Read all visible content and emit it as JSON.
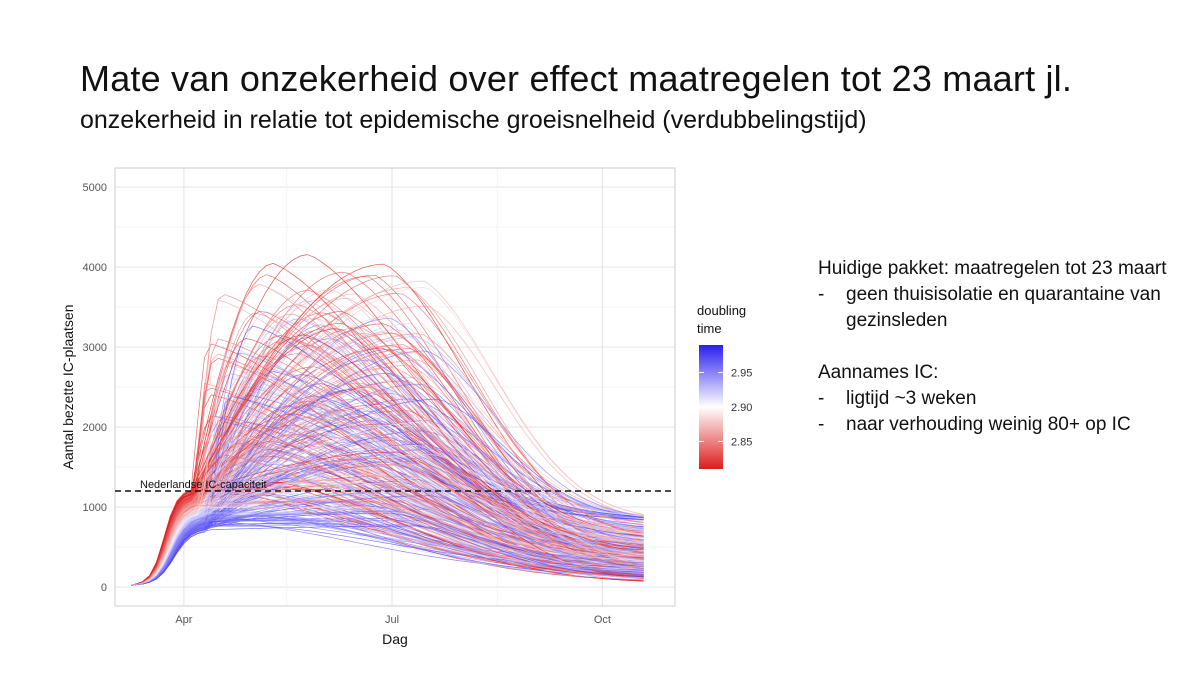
{
  "slide": {
    "title": "Mate van onzekerheid over effect maatregelen tot 23 maart jl.",
    "subtitle": "onzekerheid in relatie tot epidemische groeisnelheid (verdubbelingstijd)"
  },
  "notes": {
    "heading1": "Huidige pakket: maatregelen tot 23 maart",
    "bullets1": [
      "geen thuisisolatie en quarantaine van gezinsleden"
    ],
    "heading2": "Aannames IC:",
    "bullets2": [
      "ligtijd ~3 weken",
      "naar verhouding weinig 80+ op IC"
    ],
    "bullet_marker": "-"
  },
  "chart_data": {
    "type": "line",
    "xlabel": "Dag",
    "ylabel": "Aantal bezette IC-plaatsen",
    "x_ticks": [
      "Apr",
      "Jul",
      "Oct"
    ],
    "y_ticks": [
      "0",
      "1000",
      "2000",
      "3000",
      "4000",
      "5000"
    ],
    "ylim": [
      0,
      5000
    ],
    "x_range_days": [
      "2020-03-01",
      "2020-10-20"
    ],
    "grid": true,
    "reference_line": {
      "y": 1200,
      "label": "Nederlandse IC-capaciteit",
      "style": "dashed"
    },
    "legend": {
      "title_line1": "doubling",
      "title_line2": "time",
      "ticks": [
        "2.95",
        "2.90",
        "2.85"
      ],
      "tick_values": [
        2.95,
        2.9,
        2.85
      ],
      "range": [
        2.81,
        2.99
      ],
      "colors": {
        "low": "#dd1c1c",
        "mid": "#ffffff",
        "high": "#2a1ff0"
      }
    },
    "series_description": "approx. 400 simulated IC-occupancy trajectories, each coloured by doubling time",
    "series_summary": {
      "count": 400,
      "start_day": "2020-03-09",
      "start_value": 20,
      "min_peak": 800,
      "max_peak": 4300,
      "max_value_end": 830
    },
    "accent_colors": {
      "axis_text": "#555555",
      "grid": "#e6e6e6",
      "panel_border": "#cccccc"
    }
  }
}
